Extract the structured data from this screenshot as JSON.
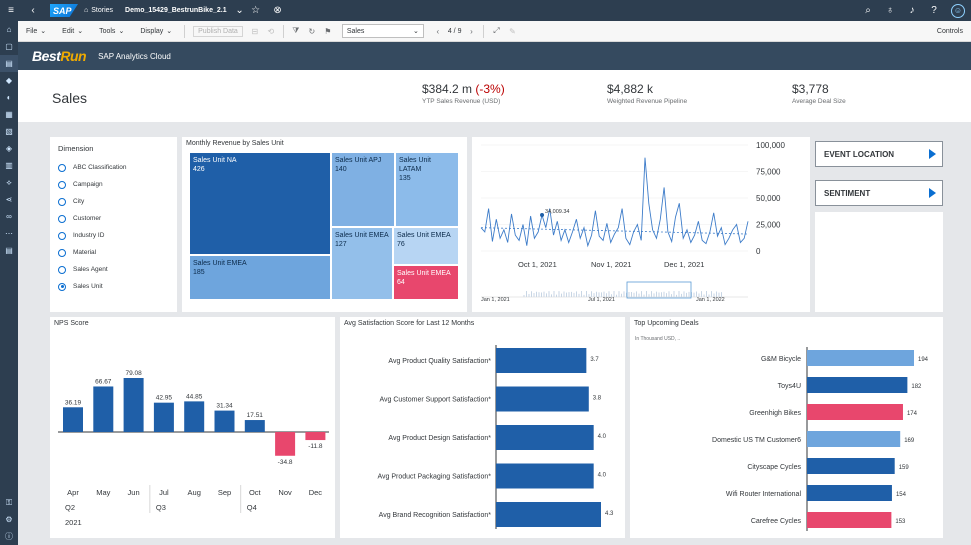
{
  "shell": {
    "logo": "SAP",
    "stories_label": "Stories",
    "doc_title": "Demo_15429_BestrunBike_2.1"
  },
  "toolbar": {
    "file": "File",
    "edit": "Edit",
    "tools": "Tools",
    "display": "Display",
    "publish": "Publish Data",
    "page_select": "Sales",
    "page_counter": "4 / 9",
    "controls": "Controls"
  },
  "banner": {
    "brand_a": "Best",
    "brand_b": "Run",
    "subtitle": "SAP Analytics Cloud"
  },
  "header": {
    "title": "Sales",
    "kpis": [
      {
        "value": "$384.2 m",
        "delta": "(-3%)",
        "label": "YTP Sales Revenue (USD)"
      },
      {
        "value": "$4,882 k",
        "delta": "",
        "label": "Weighted Revenue Pipeline"
      },
      {
        "value": "$3,778",
        "delta": "",
        "label": "Average Deal Size"
      }
    ]
  },
  "dimension": {
    "title": "Dimension",
    "options": [
      "ABC Classification",
      "Campaign",
      "City",
      "Customer",
      "Industry ID",
      "Material",
      "Sales Agent",
      "Sales Unit"
    ],
    "selected": "Sales Unit"
  },
  "treemap": {
    "title": "Monthly Revenue by Sales Unit",
    "cells": [
      {
        "name": "Sales Unit NA",
        "value": "426",
        "color": "#1f5fa8"
      },
      {
        "name": "Sales Unit APJ",
        "value": "140",
        "color": "#7fb0e3"
      },
      {
        "name": "Sales Unit LATAM",
        "value": "135",
        "color": "#8cbbea"
      },
      {
        "name": "Sales Unit EMEA",
        "value": "185",
        "color": "#6ea5dd"
      },
      {
        "name": "Sales Unit EMEA",
        "value": "127",
        "color": "#93bfea"
      },
      {
        "name": "Sales Unit EMEA",
        "value": "76",
        "color": "#b7d5f3"
      },
      {
        "name": "Sales Unit EMEA",
        "value": "64",
        "color": "#e8476d"
      }
    ]
  },
  "timeseries": {
    "y_ticks": [
      "100,000",
      "75,000",
      "50,000",
      "25,000",
      "0"
    ],
    "x_ticks": [
      "Oct 1, 2021",
      "Nov 1, 2021",
      "Dec 1, 2021"
    ],
    "overview_ticks": [
      "Jan 1, 2021",
      "Jul 1, 2021",
      "Jan 1, 2022"
    ],
    "annotation": "34,009.34"
  },
  "buttons": {
    "event_location": "EVENT LOCATION",
    "sentiment": "SENTIMENT"
  },
  "nps": {
    "title": "NPS Score",
    "months": [
      "Apr",
      "May",
      "Jun",
      "Jul",
      "Aug",
      "Sep",
      "Oct",
      "Nov",
      "Dec"
    ],
    "quarters": [
      "Q2",
      "Q3",
      "Q4"
    ],
    "year": "2021"
  },
  "satisfaction": {
    "title": "Avg Satisfaction Score for Last 12 Months",
    "labels": [
      "Avg Product Quality Satisfaction*",
      "Avg Customer Support Satisfaction*",
      "Avg Product Design Satisfaction*",
      "Avg Product Packaging Satisfaction*",
      "Avg Brand Recognition Satisfaction*"
    ]
  },
  "deals": {
    "title": "Top Upcoming Deals",
    "subtitle": "In Thousand USD, ..",
    "labels": [
      "G&M Bicycle",
      "Toys4U",
      "Greenhigh Bikes",
      "Domestic US TM Customer6",
      "Cityscape Cycles",
      "Wifi Router International",
      "Carefree Cycles"
    ]
  },
  "chart_data": [
    {
      "type": "bar",
      "title": "NPS Score",
      "categories": [
        "Apr",
        "May",
        "Jun",
        "Jul",
        "Aug",
        "Sep",
        "Oct",
        "Nov",
        "Dec"
      ],
      "values": [
        36.19,
        66.67,
        79.08,
        42.95,
        44.85,
        31.34,
        17.51,
        -34.8,
        -11.8
      ],
      "colors": {
        "positive": "#1f5fa8",
        "negative": "#e8476d"
      }
    },
    {
      "type": "bar",
      "orientation": "horizontal",
      "title": "Avg Satisfaction Score for Last 12 Months",
      "categories": [
        "Avg Product Quality Satisfaction*",
        "Avg Customer Support Satisfaction*",
        "Avg Product Design Satisfaction*",
        "Avg Product Packaging Satisfaction*",
        "Avg Brand Recognition Satisfaction*"
      ],
      "values": [
        3.7,
        3.8,
        4.0,
        4.0,
        4.3
      ],
      "color": "#1f5fa8"
    },
    {
      "type": "bar",
      "orientation": "horizontal",
      "title": "Top Upcoming Deals",
      "categories": [
        "G&M Bicycle",
        "Toys4U",
        "Greenhigh Bikes",
        "Domestic US TM Customer6",
        "Cityscape Cycles",
        "Wifi Router International",
        "Carefree Cycles"
      ],
      "values": [
        194,
        182,
        174,
        169,
        159,
        154,
        153
      ],
      "colors": [
        "#6ea5dd",
        "#1f5fa8",
        "#e8476d",
        "#6ea5dd",
        "#1f5fa8",
        "#1f5fa8",
        "#e8476d"
      ]
    },
    {
      "type": "line",
      "ylim": [
        0,
        100000
      ],
      "y_ticks": [
        100000,
        75000,
        50000,
        25000,
        0
      ],
      "x_ticks": [
        "Oct 1, 2021",
        "Nov 1, 2021",
        "Dec 1, 2021"
      ],
      "values": [
        22000,
        18000,
        40000,
        9000,
        30000,
        12000,
        20000,
        8000,
        35000,
        15000,
        10000,
        25000,
        5000,
        33000,
        12000,
        18000,
        34009,
        22000,
        40000,
        15000,
        28000,
        10000,
        20000,
        8000,
        18000,
        30000,
        12000,
        22000,
        5000,
        15000,
        38000,
        14000,
        10000,
        26000,
        8000,
        16000,
        22000,
        40000,
        12000,
        6000,
        18000,
        25000,
        10000,
        88000,
        45000,
        20000,
        12000,
        30000,
        60000,
        18000,
        9000,
        32000,
        45000,
        12000,
        20000,
        8000,
        15000,
        28000,
        10000,
        7000,
        18000,
        36000,
        14000,
        22000,
        6000,
        12000,
        20000,
        25000,
        8000,
        12000,
        28000
      ],
      "annotation": "34,009.34"
    }
  ]
}
